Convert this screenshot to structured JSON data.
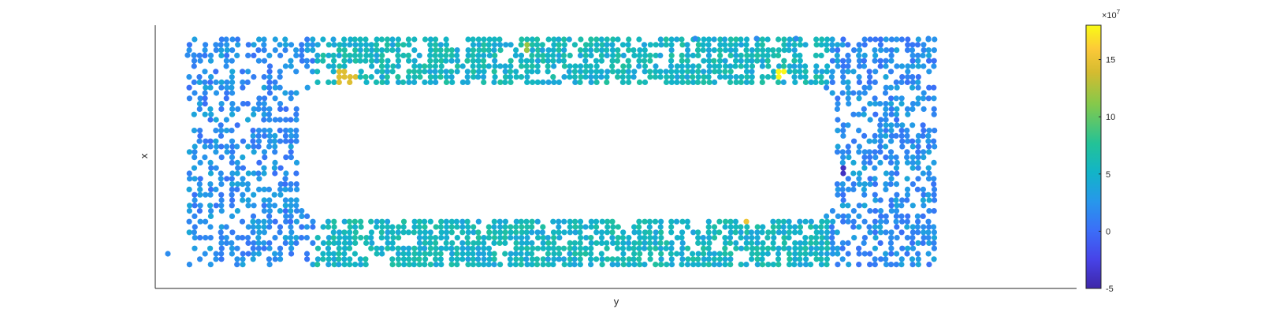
{
  "chart_data": {
    "type": "scatter",
    "xlabel": "y",
    "ylabel": "x",
    "xticks": [],
    "yticks": [],
    "grid": false,
    "colormap": "parula",
    "colorbar": {
      "ticks": [
        -5,
        0,
        5,
        10,
        15
      ],
      "labels": [
        "-5",
        "0",
        "5",
        "10",
        "15"
      ],
      "exponent_label": "×10",
      "exponent_power": "7",
      "range": [
        -5,
        18
      ],
      "location": "right"
    },
    "point_layout": "dense rectangular frame of points around an empty central region",
    "notable_values": [
      {
        "approx_value": 18,
        "unit": "×10^7",
        "region": "top edge, right of center"
      },
      {
        "approx_value": 14,
        "unit": "×10^7",
        "region": "top-left inner corner"
      },
      {
        "approx_value": -4,
        "unit": "×10^7",
        "region": "right side, middle"
      }
    ]
  },
  "colors": {
    "axis": "#262626",
    "background": "#ffffff",
    "parula_stops": [
      "#3e26a8",
      "#4743e8",
      "#3b6ef8",
      "#2797eb",
      "#12b4c8",
      "#23c297",
      "#84c94b",
      "#d4bb30",
      "#fcc938",
      "#f9fb15"
    ]
  }
}
